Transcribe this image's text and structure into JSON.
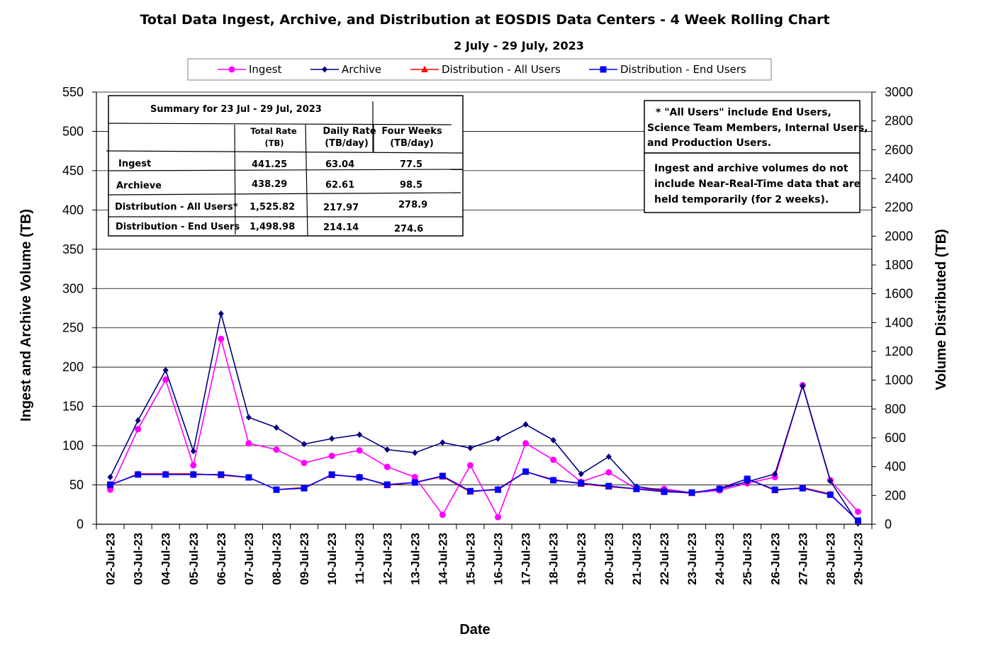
{
  "chart_data": {
    "type": "line",
    "title": "Total Data Ingest, Archive, and  Distribution at EOSDIS Data Centers - 4 Week Rolling Chart",
    "subtitle": "2 July   - 29 July, 2023",
    "xlabel": "Date",
    "ylabel": "Ingest and Archive Volume (TB)",
    "y2label": "Volume Distributed (TB)",
    "ylim": [
      0,
      550
    ],
    "y2lim": [
      0,
      3000
    ],
    "yticks": [
      "0",
      "50",
      "100",
      "150",
      "200",
      "250",
      "300",
      "350",
      "400",
      "450",
      "500",
      "550"
    ],
    "y2ticks": [
      "0",
      "200",
      "400",
      "600",
      "800",
      "1000",
      "1200",
      "1400",
      "1600",
      "1800",
      "2000",
      "2200",
      "2400",
      "2600",
      "2800",
      "3000"
    ],
    "grid": true,
    "legend_position": "top",
    "categories": [
      "02-Jul-23",
      "03-Jul-23",
      "04-Jul-23",
      "05-Jul-23",
      "06-Jul-23",
      "07-Jul-23",
      "08-Jul-23",
      "09-Jul-23",
      "10-Jul-23",
      "11-Jul-23",
      "12-Jul-23",
      "13-Jul-23",
      "14-Jul-23",
      "15-Jul-23",
      "16-Jul-23",
      "17-Jul-23",
      "18-Jul-23",
      "19-Jul-23",
      "20-Jul-23",
      "21-Jul-23",
      "22-Jul-23",
      "23-Jul-23",
      "24-Jul-23",
      "25-Jul-23",
      "26-Jul-23",
      "27-Jul-23",
      "28-Jul-23",
      "29-Jul-23"
    ],
    "series": [
      {
        "name": "Ingest",
        "axis": "left",
        "color": "#ff00ff",
        "marker": "circle",
        "values": [
          44,
          121,
          184,
          75,
          236,
          103,
          95,
          78,
          87,
          94,
          73,
          60,
          12,
          75,
          9,
          103,
          82,
          54,
          66,
          45,
          45,
          40,
          43,
          52,
          60,
          177,
          56,
          16
        ]
      },
      {
        "name": "Archive",
        "axis": "left",
        "color": "#000080",
        "marker": "diamond",
        "values": [
          60,
          132,
          196,
          93,
          268,
          136,
          123,
          102,
          109,
          114,
          95,
          91,
          104,
          97,
          109,
          127,
          107,
          64,
          86,
          48,
          43,
          40,
          45,
          54,
          64,
          176,
          55,
          1
        ]
      },
      {
        "name": "Distribution - All Users",
        "axis": "right",
        "color": "#ff0000",
        "marker": "triangle",
        "values": [
          270,
          350,
          350,
          350,
          340,
          325,
          240,
          255,
          340,
          330,
          270,
          290,
          330,
          225,
          245,
          365,
          310,
          280,
          260,
          245,
          230,
          215,
          250,
          315,
          235,
          255,
          210,
          20
        ]
      },
      {
        "name": "Distribution - End Users",
        "axis": "right",
        "color": "#0000ff",
        "marker": "square",
        "values": [
          275,
          345,
          345,
          345,
          345,
          325,
          240,
          250,
          345,
          325,
          275,
          290,
          335,
          230,
          240,
          365,
          305,
          285,
          265,
          245,
          225,
          220,
          245,
          315,
          240,
          250,
          205,
          25
        ]
      }
    ]
  },
  "summary": {
    "title": "Summary  for  23 Jul - 29 Jul,  2023",
    "col_total": "Total  Rate",
    "col_total_unit": "(TB)",
    "col_daily": "Daily Rate",
    "col_daily_unit": "(TB/day)",
    "col_four": "Four Weeks",
    "col_four_unit": "(TB/day)",
    "rows": [
      {
        "label": "Ingest",
        "total": "441.25",
        "daily": "63.04",
        "four": "77.5"
      },
      {
        "label": "Archieve",
        "total": "438.29",
        "daily": "62.61",
        "four": "98.5"
      },
      {
        "label": "Distribution - All Users*",
        "total": "1,525.82",
        "daily": "217.97",
        "four": "278.9"
      },
      {
        "label": "Distribution - End Users",
        "total": "1,498.98",
        "daily": "214.14",
        "four": "274.6"
      }
    ]
  },
  "notes": {
    "note1_line1": "* \"All Users\" include End Users,",
    "note1_line2": "Science Team Members,  Internal Users,",
    "note1_line3": "and Production Users.",
    "note2_line1": "Ingest and archive volumes do not",
    "note2_line2": "include Near-Real-Time data that are",
    "note2_line3": "held temporarily (for 2 weeks)."
  }
}
